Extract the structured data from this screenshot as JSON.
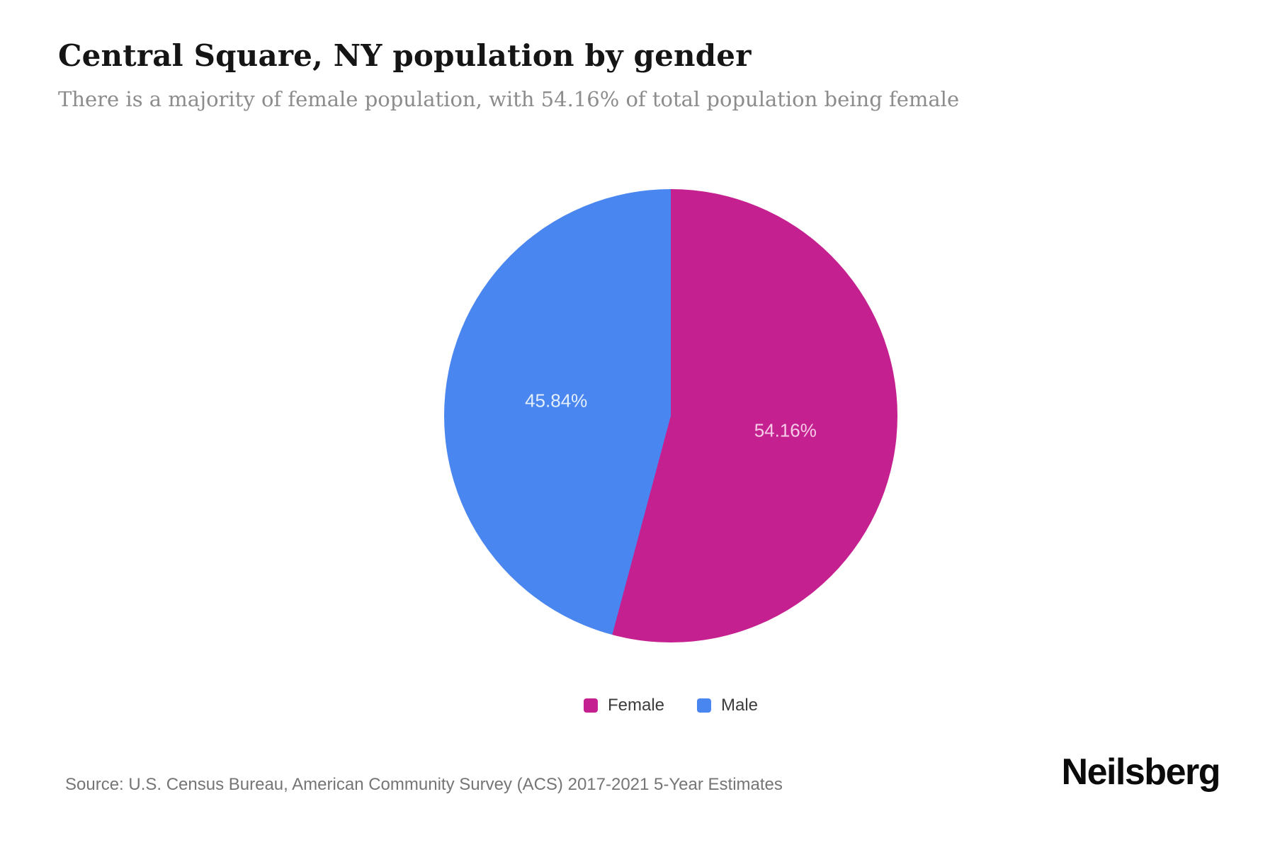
{
  "header": {
    "title": "Central Square, NY population by gender",
    "subtitle": "There is a majority of female population, with 54.16% of total population being female"
  },
  "chart_data": {
    "type": "pie",
    "title": "Central Square, NY population by gender",
    "start_angle_deg": 0,
    "direction": "clockwise",
    "legend_position": "bottom",
    "label_radius_ratio": 0.51,
    "slices": [
      {
        "label": "Female",
        "value": 54.16,
        "display": "54.16%",
        "color": "#C5208F",
        "label_color": "#F6CBE7"
      },
      {
        "label": "Male",
        "value": 45.84,
        "display": "45.84%",
        "color": "#4A86F0",
        "label_color": "#E4EFFC"
      }
    ]
  },
  "footer": {
    "source": "Source: U.S. Census Bureau, American Community Survey (ACS) 2017-2021 5-Year Estimates",
    "logo": "Neilsberg"
  }
}
